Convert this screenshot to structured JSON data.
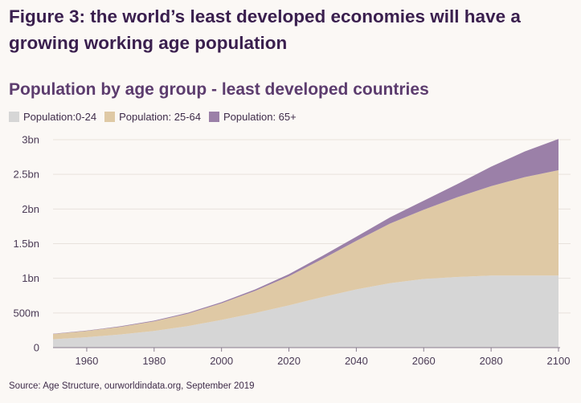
{
  "figure_title": "Figure 3: the world’s least developed economies will have a growing working age population",
  "colors": {
    "pop_0_24": "#d6d6d6",
    "pop_25_64": "#dfc9a5",
    "pop_65_plus": "#9b80a8",
    "grid": "#e8e2dc",
    "axis": "#8a7d8f"
  },
  "chart_data": {
    "type": "area",
    "stacked": true,
    "title": "Population by age group - least developed countries",
    "legend_position": "top-left",
    "x": [
      1950,
      1960,
      1970,
      1980,
      1990,
      2000,
      2010,
      2020,
      2030,
      2040,
      2050,
      2060,
      2070,
      2080,
      2090,
      2100
    ],
    "series": [
      {
        "name": "Population:0-24",
        "color": "#d6d6d6",
        "values": [
          0.12,
          0.15,
          0.19,
          0.24,
          0.31,
          0.4,
          0.5,
          0.61,
          0.73,
          0.84,
          0.93,
          0.99,
          1.02,
          1.04,
          1.04,
          1.04
        ]
      },
      {
        "name": "Population: 25-64",
        "color": "#dfc9a5",
        "values": [
          0.075,
          0.09,
          0.11,
          0.14,
          0.18,
          0.24,
          0.32,
          0.42,
          0.55,
          0.7,
          0.86,
          1.0,
          1.15,
          1.29,
          1.42,
          1.52
        ]
      },
      {
        "name": "Population: 65+",
        "color": "#9b80a8",
        "values": [
          0.005,
          0.006,
          0.008,
          0.01,
          0.012,
          0.016,
          0.02,
          0.03,
          0.045,
          0.06,
          0.09,
          0.13,
          0.19,
          0.28,
          0.37,
          0.45
        ]
      }
    ],
    "y_ticks": [
      {
        "value": 0,
        "label": "0"
      },
      {
        "value": 0.5,
        "label": "500m"
      },
      {
        "value": 1,
        "label": "1bn"
      },
      {
        "value": 1.5,
        "label": "1.5bn"
      },
      {
        "value": 2,
        "label": "2bn"
      },
      {
        "value": 2.5,
        "label": "2.5bn"
      },
      {
        "value": 3,
        "label": "3bn"
      }
    ],
    "x_ticks": [
      1960,
      1980,
      2000,
      2020,
      2040,
      2060,
      2080,
      2100
    ],
    "xlim": [
      1950,
      2100
    ],
    "ylim": [
      0,
      3
    ],
    "grid": true
  },
  "source": "Source: Age Structure, ourworldindata.org, September 2019"
}
